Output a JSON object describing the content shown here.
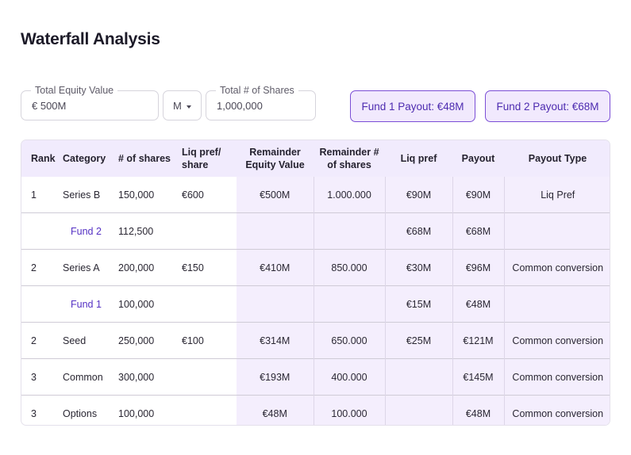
{
  "page": {
    "title": "Waterfall Analysis"
  },
  "inputs": {
    "equity": {
      "label": "Total Equity Value",
      "value": "€ 500M"
    },
    "unit": {
      "value": "M"
    },
    "shares": {
      "label": "Total # of Shares",
      "value": "1,000,000"
    }
  },
  "payouts": {
    "fund1": "Fund 1 Payout: €48M",
    "fund2": "Fund 2 Payout: €68M"
  },
  "table": {
    "headers": {
      "rank": "Rank",
      "category": "Category",
      "shares": "# of shares",
      "liq_pref_share_1": "Liq pref/",
      "liq_pref_share_2": "share",
      "rem_equity_1": "Remainder",
      "rem_equity_2": "Equity Value",
      "rem_shares_1": "Remainder #",
      "rem_shares_2": "of shares",
      "liq_pref": "Liq pref",
      "payout": "Payout",
      "payout_type": "Payout Type"
    },
    "rows": [
      {
        "rank": "1",
        "category": "Series B",
        "shares": "150,000",
        "lps": "€600",
        "rev": "€500M",
        "rs": "1.000.000",
        "lp": "€90M",
        "payout": "€90M",
        "type": "Liq Pref"
      },
      {
        "rank": "",
        "category": "Fund 2",
        "shares": "112,500",
        "lps": "",
        "rev": "",
        "rs": "",
        "lp": "€68M",
        "payout": "€68M",
        "type": ""
      },
      {
        "rank": "2",
        "category": "Series A",
        "shares": "200,000",
        "lps": "€150",
        "rev": "€410M",
        "rs": "850.000",
        "lp": "€30M",
        "payout": "€96M",
        "type": "Common conversion"
      },
      {
        "rank": "",
        "category": "Fund 1",
        "shares": "100,000",
        "lps": "",
        "rev": "",
        "rs": "",
        "lp": "€15M",
        "payout": "€48M",
        "type": ""
      },
      {
        "rank": "2",
        "category": "Seed",
        "shares": "250,000",
        "lps": "€100",
        "rev": "€314M",
        "rs": "650.000",
        "lp": "€25M",
        "payout": "€121M",
        "type": "Common conversion"
      },
      {
        "rank": "3",
        "category": "Common",
        "shares": "300,000",
        "lps": "",
        "rev": "€193M",
        "rs": "400.000",
        "lp": "",
        "payout": "€145M",
        "type": "Common conversion"
      },
      {
        "rank": "3",
        "category": "Options",
        "shares": "100,000",
        "lps": "",
        "rev": "€48M",
        "rs": "100.000",
        "lp": "",
        "payout": "€48M",
        "type": "Common conversion"
      }
    ]
  },
  "colors": {
    "accent": "#7b4ed6",
    "highlight": "#f1ebfd",
    "fund_text": "#5531c4"
  }
}
